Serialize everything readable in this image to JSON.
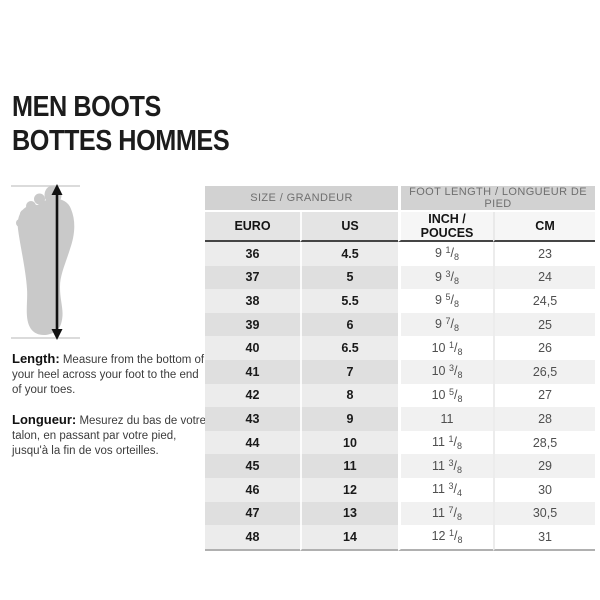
{
  "title": {
    "line1": "MEN BOOTS",
    "line2": "BOTTES HOMMES"
  },
  "instructions": {
    "en_label": "Length:",
    "en_text": " Measure from the bottom of your heel across your foot to the end of your toes.",
    "fr_label": "Longueur:",
    "fr_text": " Mesurez du bas de votre talon, en passant par votre pied, jusqu'à la fin de vos orteilles."
  },
  "chart_data": {
    "type": "table",
    "title": "MEN BOOTS / BOTTES HOMMES",
    "column_groups": [
      "SIZE / GRANDEUR",
      "FOOT LENGTH / LONGUEUR DE PIED"
    ],
    "columns": [
      "EURO",
      "US",
      "INCH / POUCES",
      "CM"
    ],
    "rows": [
      [
        "36",
        "4.5",
        "9 1/8",
        "23"
      ],
      [
        "37",
        "5",
        "9 3/8",
        "24"
      ],
      [
        "38",
        "5.5",
        "9 5/8",
        "24,5"
      ],
      [
        "39",
        "6",
        "9 7/8",
        "25"
      ],
      [
        "40",
        "6.5",
        "10 1/8",
        "26"
      ],
      [
        "41",
        "7",
        "10 3/8",
        "26,5"
      ],
      [
        "42",
        "8",
        "10 5/8",
        "27"
      ],
      [
        "43",
        "9",
        "11",
        "28"
      ],
      [
        "44",
        "10",
        "11 1/8",
        "28,5"
      ],
      [
        "45",
        "11",
        "11 3/8",
        "29"
      ],
      [
        "46",
        "12",
        "11 3/4",
        "30"
      ],
      [
        "47",
        "13",
        "11 7/8",
        "30,5"
      ],
      [
        "48",
        "14",
        "12 1/8",
        "31"
      ]
    ]
  },
  "colors": {
    "group_header_bg": "#d2d2d2",
    "group_header_text": "#6f6f6f",
    "subheader_left_bg": "#e4e4e4",
    "subheader_right_bg": "#f6f6f6",
    "row_left_light": "#ececec",
    "row_left_dark": "#dfdfdf",
    "row_right_light": "#ffffff",
    "row_right_dark": "#f1f1f1",
    "rule_dark": "#454545",
    "foot_fill": "#c9c9c9",
    "arrow": "#111111"
  }
}
